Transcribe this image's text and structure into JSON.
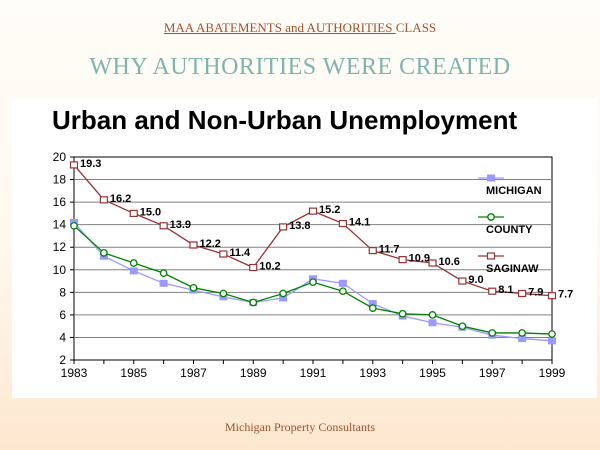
{
  "header": {
    "title_part1": "MAA ABATEMENTS and AUTHORITIES ",
    "title_part2": "CLASS",
    "subtitle": "WHY AUTHORITIES WERE CREATED"
  },
  "footer": {
    "text": "Michigan Property Consultants"
  },
  "chart_data": {
    "type": "line",
    "title": "Urban and Non-Urban Unemployment",
    "xlabel": "",
    "ylabel": "",
    "x": [
      1983,
      1984,
      1985,
      1986,
      1987,
      1988,
      1989,
      1990,
      1991,
      1992,
      1993,
      1994,
      1995,
      1996,
      1997,
      1998,
      1999
    ],
    "xticks": [
      "1983",
      "1985",
      "1987",
      "1989",
      "1991",
      "1993",
      "1995",
      "1997",
      "1999"
    ],
    "ylim": [
      2,
      20
    ],
    "yticks": [
      "2",
      "4",
      "6",
      "8",
      "10",
      "12",
      "14",
      "16",
      "18",
      "20"
    ],
    "grid": true,
    "legend_position": "right",
    "series": [
      {
        "name": "MICHIGAN",
        "color": "#9999ff",
        "marker": "square-filled",
        "values": [
          14.2,
          11.2,
          9.9,
          8.8,
          8.2,
          7.6,
          7.1,
          7.5,
          9.2,
          8.8,
          7.0,
          5.9,
          5.3,
          4.9,
          4.2,
          3.9,
          3.7
        ],
        "labels_shown": false
      },
      {
        "name": "COUNTY",
        "color": "#008000",
        "marker": "circle-open",
        "values": [
          13.9,
          11.5,
          10.6,
          9.7,
          8.4,
          7.9,
          7.1,
          7.9,
          8.9,
          8.1,
          6.6,
          6.1,
          6.0,
          5.0,
          4.4,
          4.4,
          4.3
        ],
        "labels_shown": false
      },
      {
        "name": "SAGINAW",
        "color": "#993333",
        "marker": "square-open",
        "values": [
          19.3,
          16.2,
          15.0,
          13.9,
          12.2,
          11.4,
          10.2,
          13.8,
          15.2,
          14.1,
          11.7,
          10.9,
          10.6,
          9.0,
          8.1,
          7.9,
          7.7
        ],
        "data_labels": [
          "19.3",
          "16.2",
          "15.0",
          "13.9",
          "12.2",
          "11.4",
          "10.2",
          "13.8",
          "15.2",
          "14.1",
          "11.7",
          "10.9",
          "10.6",
          "9.0",
          "8.1",
          "7.9",
          "7.7"
        ],
        "labels_shown": true
      }
    ]
  }
}
